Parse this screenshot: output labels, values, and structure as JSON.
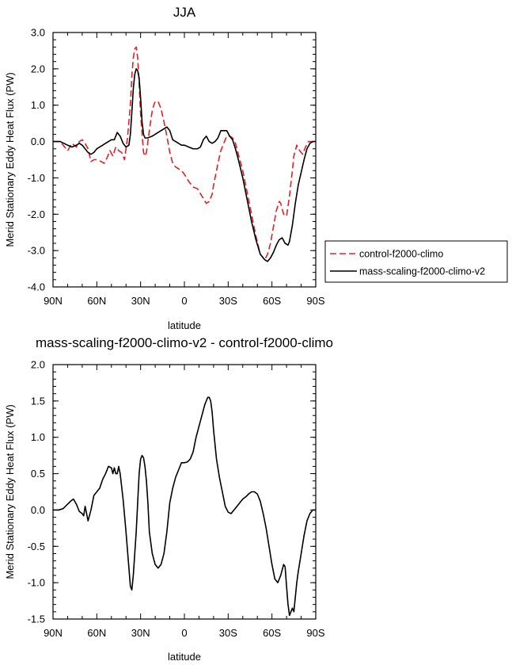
{
  "chart_data": [
    {
      "type": "line",
      "title": "JJA",
      "xlabel": "latitude",
      "ylabel": "Merid Stationary Eddy Heat Flux (PW)",
      "xlim": [
        90,
        -90
      ],
      "ylim": [
        -4.0,
        3.0
      ],
      "xticks": [
        90,
        60,
        30,
        0,
        -30,
        -60,
        -90
      ],
      "xtick_labels": [
        "90N",
        "60N",
        "30N",
        "0",
        "30S",
        "60S",
        "90S"
      ],
      "yticks": [
        -4.0,
        -3.0,
        -2.0,
        -1.0,
        0.0,
        1.0,
        2.0,
        3.0
      ],
      "ytick_labels": [
        "-4.0",
        "-3.0",
        "-2.0",
        "-1.0",
        "0.0",
        "1.0",
        "2.0",
        "3.0"
      ],
      "grid": false,
      "legend": "outside-right",
      "series": [
        {
          "name": "control-f2000-climo",
          "color": "#e0202a",
          "dash": "dashed",
          "x": [
            90,
            85,
            80,
            77,
            74,
            72,
            70,
            68,
            66,
            64,
            62,
            60,
            57,
            55,
            53,
            51,
            49,
            47,
            45,
            43,
            41,
            39,
            37,
            36,
            35,
            34,
            33,
            32,
            31,
            30,
            28,
            27,
            26,
            25,
            24,
            23,
            22,
            21,
            20,
            18,
            16,
            14,
            12,
            10,
            8,
            6,
            4,
            2,
            0,
            -3,
            -6,
            -9,
            -12,
            -15,
            -17,
            -19,
            -20,
            -21,
            -23,
            -25,
            -27,
            -29,
            -31,
            -33,
            -35,
            -37,
            -40,
            -43,
            -46,
            -49,
            -52,
            -55,
            -57,
            -59,
            -61,
            -63,
            -65,
            -66,
            -68,
            -70,
            -72,
            -74,
            -75,
            -77,
            -79,
            -81,
            -83,
            -85,
            -87,
            -90
          ],
          "y": [
            0.0,
            0.0,
            -0.25,
            -0.05,
            -0.15,
            0.0,
            0.05,
            -0.05,
            -0.2,
            -0.55,
            -0.5,
            -0.5,
            -0.55,
            -0.6,
            -0.45,
            -0.25,
            -0.4,
            -0.15,
            -0.25,
            -0.3,
            -0.5,
            0.1,
            1.0,
            1.8,
            2.3,
            2.55,
            2.6,
            2.3,
            1.6,
            0.75,
            -0.3,
            -0.4,
            -0.3,
            0.0,
            0.3,
            0.6,
            0.85,
            1.0,
            1.1,
            1.1,
            0.9,
            0.55,
            0.15,
            -0.3,
            -0.6,
            -0.7,
            -0.75,
            -0.8,
            -0.9,
            -1.1,
            -1.25,
            -1.3,
            -1.5,
            -1.7,
            -1.65,
            -1.45,
            -1.2,
            -1.0,
            -0.6,
            -0.25,
            -0.05,
            0.15,
            0.15,
            0.1,
            -0.05,
            -0.35,
            -0.8,
            -1.4,
            -2.0,
            -2.6,
            -3.1,
            -3.25,
            -3.1,
            -2.8,
            -2.35,
            -1.9,
            -1.65,
            -1.7,
            -2.0,
            -2.05,
            -1.5,
            -0.8,
            -0.4,
            -0.1,
            -0.25,
            -0.35,
            -0.15,
            0.0,
            0.0,
            0.0
          ]
        },
        {
          "name": "mass-scaling-f2000-climo-v2",
          "color": "#000000",
          "dash": "solid",
          "x": [
            90,
            85,
            80,
            77,
            74,
            72,
            70,
            68,
            66,
            64,
            62,
            60,
            58,
            56,
            54,
            52,
            50,
            48,
            46,
            44,
            42,
            40,
            38,
            37,
            36,
            35,
            34,
            33,
            32,
            31,
            30,
            29,
            28,
            27,
            26,
            25,
            24,
            22,
            20,
            18,
            16,
            14,
            12,
            10,
            8,
            6,
            4,
            2,
            0,
            -3,
            -6,
            -9,
            -11,
            -13,
            -15,
            -17,
            -19,
            -21,
            -23,
            -25,
            -27,
            -29,
            -31,
            -33,
            -35,
            -37,
            -40,
            -43,
            -46,
            -49,
            -52,
            -55,
            -57,
            -59,
            -61,
            -63,
            -65,
            -67,
            -69,
            -71,
            -72,
            -74,
            -76,
            -78,
            -80,
            -82,
            -84,
            -86,
            -88,
            -90
          ],
          "y": [
            0.0,
            0.0,
            -0.1,
            -0.15,
            -0.1,
            -0.05,
            -0.1,
            -0.2,
            -0.3,
            -0.35,
            -0.3,
            -0.2,
            -0.15,
            -0.1,
            -0.05,
            0.0,
            0.05,
            0.05,
            0.25,
            0.15,
            -0.05,
            -0.15,
            -0.1,
            0.2,
            0.8,
            1.45,
            1.85,
            2.0,
            1.95,
            1.75,
            1.2,
            0.55,
            0.2,
            0.1,
            0.1,
            0.1,
            0.12,
            0.15,
            0.2,
            0.25,
            0.3,
            0.35,
            0.4,
            0.3,
            0.05,
            0.0,
            -0.05,
            -0.1,
            -0.1,
            -0.15,
            -0.2,
            -0.2,
            -0.15,
            0.05,
            0.15,
            0.0,
            -0.05,
            0.0,
            0.1,
            0.3,
            0.3,
            0.3,
            0.15,
            0.05,
            -0.2,
            -0.5,
            -1.0,
            -1.6,
            -2.2,
            -2.7,
            -3.1,
            -3.25,
            -3.3,
            -3.2,
            -3.05,
            -2.85,
            -2.7,
            -2.65,
            -2.8,
            -2.85,
            -2.75,
            -2.3,
            -1.7,
            -1.2,
            -0.85,
            -0.5,
            -0.2,
            -0.05,
            0.0,
            0.0
          ]
        }
      ]
    },
    {
      "type": "line",
      "title": "mass-scaling-f2000-climo-v2 - control-f2000-climo",
      "xlabel": "latitude",
      "ylabel": "Merid Stationary Eddy Heat Flux (PW)",
      "xlim": [
        90,
        -90
      ],
      "ylim": [
        -1.5,
        2.0
      ],
      "xticks": [
        90,
        60,
        30,
        0,
        -30,
        -60,
        -90
      ],
      "xtick_labels": [
        "90N",
        "60N",
        "30N",
        "0",
        "30S",
        "60S",
        "90S"
      ],
      "yticks": [
        -1.5,
        -1.0,
        -0.5,
        0.0,
        0.5,
        1.0,
        1.5,
        2.0
      ],
      "ytick_labels": [
        "-1.5",
        "-1.0",
        "-0.5",
        "0.0",
        "0.5",
        "1.0",
        "1.5",
        "2.0"
      ],
      "grid": false,
      "series": [
        {
          "color": "#000000",
          "dash": "solid",
          "x": [
            90,
            86,
            83,
            80,
            78,
            76,
            74,
            72,
            70,
            69,
            68,
            66,
            64,
            62,
            60,
            58,
            56,
            54,
            52,
            50,
            49,
            48,
            47,
            46,
            45,
            44,
            42,
            40,
            38,
            37,
            36,
            35,
            34,
            33,
            32,
            31,
            30,
            29,
            28,
            27,
            26,
            25,
            24,
            22,
            20,
            18,
            16,
            14,
            13,
            12,
            10,
            8,
            6,
            4,
            2,
            0,
            -2,
            -4,
            -6,
            -8,
            -10,
            -12,
            -14,
            -16,
            -17,
            -18,
            -19,
            -20,
            -21,
            -22,
            -24,
            -26,
            -28,
            -30,
            -32,
            -34,
            -36,
            -38,
            -40,
            -42,
            -44,
            -46,
            -48,
            -50,
            -52,
            -54,
            -56,
            -58,
            -60,
            -62,
            -64,
            -66,
            -68,
            -69,
            -70,
            -71,
            -72,
            -73,
            -74,
            -75,
            -76,
            -77,
            -78,
            -80,
            -82,
            -84,
            -86,
            -88,
            -90
          ],
          "y": [
            0.0,
            0.0,
            0.02,
            0.08,
            0.12,
            0.15,
            0.08,
            -0.02,
            -0.05,
            -0.08,
            0.05,
            -0.15,
            0.0,
            0.2,
            0.25,
            0.3,
            0.42,
            0.5,
            0.6,
            0.58,
            0.5,
            0.58,
            0.5,
            0.5,
            0.6,
            0.5,
            0.15,
            -0.3,
            -0.8,
            -1.05,
            -1.1,
            -0.9,
            -0.6,
            -0.3,
            0.1,
            0.5,
            0.7,
            0.75,
            0.72,
            0.6,
            0.4,
            0.1,
            -0.3,
            -0.6,
            -0.75,
            -0.8,
            -0.75,
            -0.6,
            -0.45,
            -0.3,
            0.1,
            0.3,
            0.45,
            0.55,
            0.65,
            0.65,
            0.66,
            0.7,
            0.8,
            1.0,
            1.15,
            1.3,
            1.45,
            1.55,
            1.55,
            1.5,
            1.35,
            1.1,
            0.9,
            0.7,
            0.45,
            0.25,
            0.05,
            -0.03,
            -0.05,
            0.0,
            0.05,
            0.1,
            0.15,
            0.18,
            0.22,
            0.25,
            0.25,
            0.22,
            0.12,
            -0.05,
            -0.25,
            -0.5,
            -0.75,
            -0.95,
            -1.0,
            -0.9,
            -0.75,
            -0.78,
            -1.05,
            -1.3,
            -1.45,
            -1.4,
            -1.35,
            -1.4,
            -1.2,
            -1.0,
            -0.85,
            -0.6,
            -0.35,
            -0.15,
            -0.05,
            0.0,
            0.0
          ]
        }
      ]
    }
  ]
}
